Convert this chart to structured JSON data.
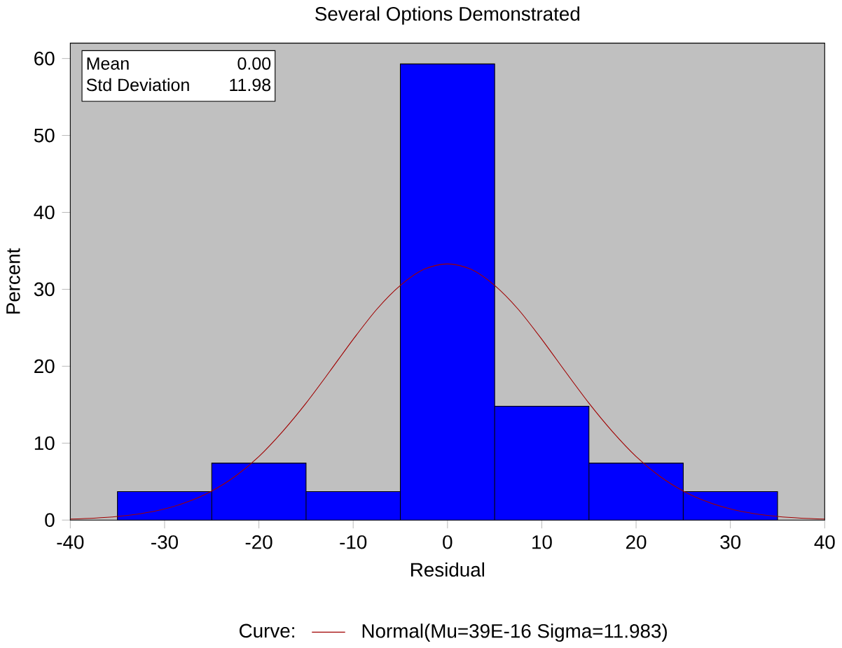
{
  "chart_data": {
    "type": "histogram",
    "title": "Several Options Demonstrated",
    "xlabel": "Residual",
    "ylabel": "Percent",
    "legend_title": "Curve:",
    "bins": [
      -35,
      -25,
      -15,
      -5,
      5,
      15,
      25,
      35
    ],
    "values": [
      3.7,
      7.4,
      3.7,
      59.3,
      14.8,
      7.4,
      3.7
    ],
    "color": "#0000ff",
    "series": [
      {
        "type": "line",
        "name": "Normal(Mu=39E-16 Sigma=11.983)",
        "color": "#a00000",
        "x": [
          -40,
          -37.5,
          -35,
          -32.5,
          -30,
          -27.5,
          -25,
          -22.5,
          -20,
          -17.5,
          -15,
          -12.5,
          -10,
          -7.5,
          -5,
          -2.5,
          0,
          2.5,
          5,
          7.5,
          10,
          12.5,
          15,
          17.5,
          20,
          22.5,
          25,
          27.5,
          30,
          32.5,
          35,
          37.5,
          40
        ],
        "values": [
          0.13,
          0.25,
          0.47,
          0.84,
          1.45,
          2.4,
          3.78,
          5.7,
          8.27,
          11.5,
          15.2,
          19.3,
          23.5,
          27.4,
          30.5,
          32.6,
          33.3,
          32.6,
          30.5,
          27.4,
          23.5,
          19.3,
          15.2,
          11.5,
          8.27,
          5.7,
          3.78,
          2.4,
          1.45,
          0.84,
          0.47,
          0.25,
          0.13
        ]
      }
    ],
    "annotations": [
      "Mean",
      "0.00",
      "Std Deviation",
      "11.98"
    ],
    "xlim": [
      -40,
      40
    ],
    "xticks": [
      -40,
      -30,
      -20,
      -10,
      0,
      10,
      20,
      30,
      40
    ],
    "ylim": [
      0,
      62
    ],
    "yticks": [
      0,
      10,
      20,
      30,
      40,
      50,
      60
    ],
    "legend": "bottom",
    "grid": false
  }
}
